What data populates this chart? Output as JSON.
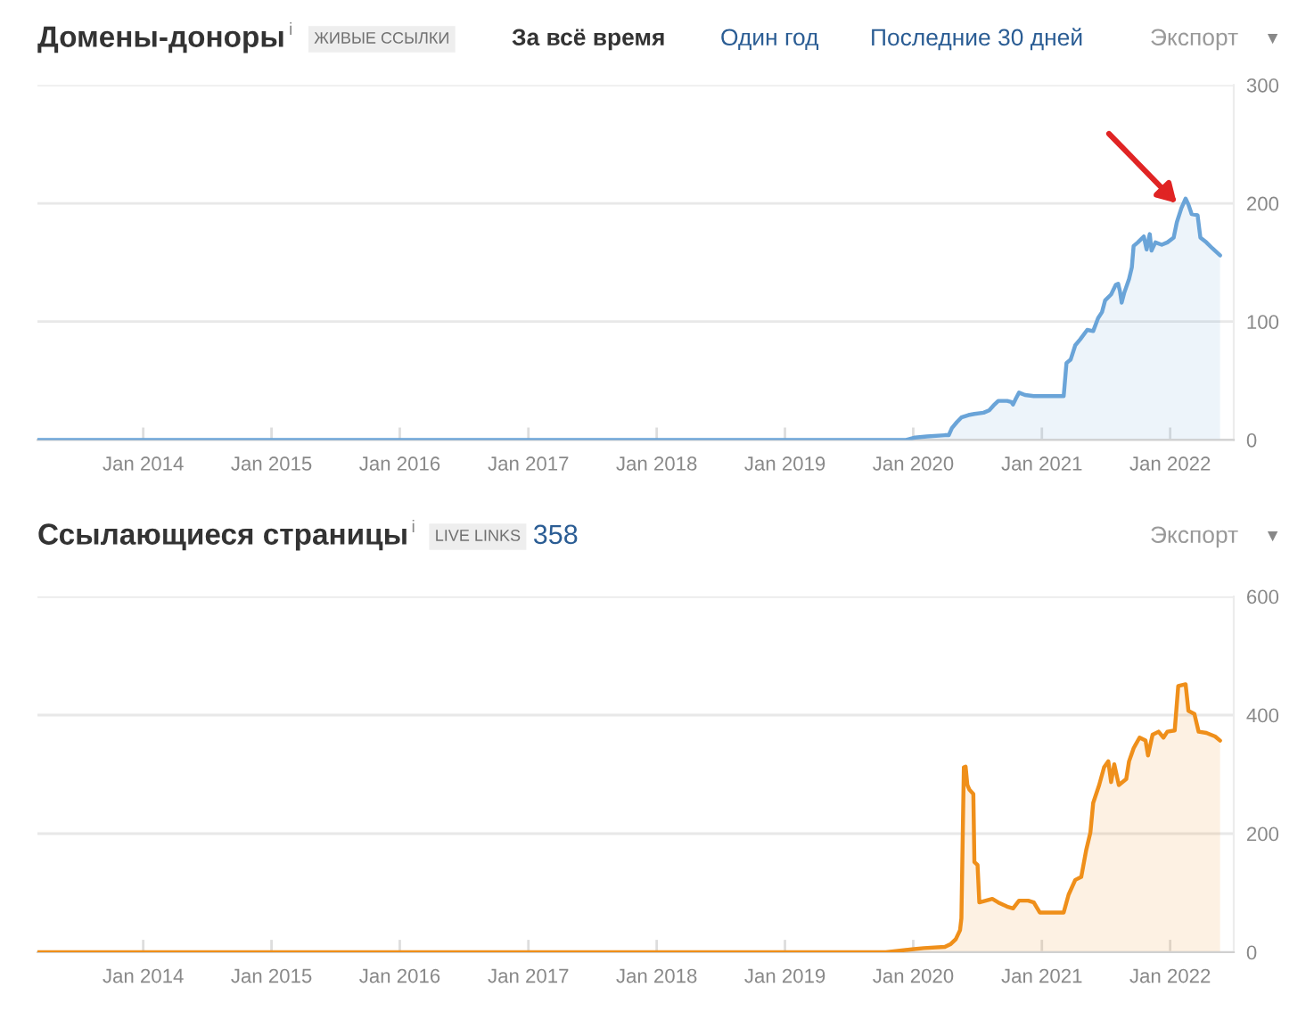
{
  "chart_data": [
    {
      "type": "area",
      "title": "Домены-доноры",
      "annotations": [
        "i",
        "ЖИВЫЕ ССЫЛКИ",
        "За всё время",
        "Один год",
        "Последние 30 дней",
        "Экспорт",
        "▼"
      ],
      "x": [
        "2013-03-06",
        "2019-12-11",
        "2020-01-06",
        "2020-02-09",
        "2020-03-31",
        "2020-04-11",
        "2020-04-20",
        "2020-05-04",
        "2020-05-17",
        "2020-06-06",
        "2020-06-23",
        "2020-07-19",
        "2020-08-04",
        "2020-08-16",
        "2020-08-30",
        "2020-09-24",
        "2020-10-06",
        "2020-10-11",
        "2020-10-19",
        "2020-10-28",
        "2020-11-14",
        "2020-12-09",
        "2021-03-04",
        "2021-03-12",
        "2021-03-24",
        "2021-04-06",
        "2021-04-20",
        "2021-05-10",
        "2021-05-27",
        "2021-06-10",
        "2021-06-21",
        "2021-06-30",
        "2021-07-17",
        "2021-07-30",
        "2021-08-06",
        "2021-08-11",
        "2021-08-16",
        "2021-08-23",
        "2021-09-06",
        "2021-09-14",
        "2021-09-19",
        "2021-10-01",
        "2021-10-18",
        "2021-10-26",
        "2021-11-04",
        "2021-11-09",
        "2021-11-20",
        "2021-12-08",
        "2021-12-24",
        "2022-01-11",
        "2022-01-20",
        "2022-02-02",
        "2022-02-14",
        "2022-02-22",
        "2022-03-03",
        "2022-03-20",
        "2022-03-28",
        "2022-04-14",
        "2022-05-01",
        "2022-05-23"
      ],
      "series": [
        {
          "color": "#6aa4d8",
          "values": [
            0,
            0,
            2,
            3,
            4,
            4,
            10,
            15,
            19,
            21,
            22,
            23,
            25,
            29,
            33,
            33,
            32,
            30,
            35,
            40,
            38,
            37,
            37,
            65,
            68,
            80,
            85,
            93,
            92,
            103,
            108,
            118,
            123,
            131,
            132,
            126,
            116,
            124,
            136,
            146,
            164,
            167,
            172,
            161,
            174,
            160,
            167,
            165,
            167,
            171,
            184,
            196,
            204,
            199,
            191,
            190,
            171,
            167,
            162,
            156
          ]
        }
      ],
      "xlim": [
        "2013-03-06",
        "2022-07-01"
      ],
      "xticks": [
        {
          "value": "2014-01-01",
          "label": "Jan 2014"
        },
        {
          "value": "2015-01-01",
          "label": "Jan 2015"
        },
        {
          "value": "2016-01-01",
          "label": "Jan 2016"
        },
        {
          "value": "2017-01-01",
          "label": "Jan 2017"
        },
        {
          "value": "2018-01-01",
          "label": "Jan 2018"
        },
        {
          "value": "2019-01-01",
          "label": "Jan 2019"
        },
        {
          "value": "2020-01-01",
          "label": "Jan 2020"
        },
        {
          "value": "2021-01-01",
          "label": "Jan 2021"
        },
        {
          "value": "2022-01-01",
          "label": "Jan 2022"
        }
      ],
      "ylim": [
        0,
        300
      ],
      "yticks": [
        0,
        100,
        200,
        300
      ],
      "grid": "y"
    },
    {
      "type": "area",
      "title": "Ссылающиеся страницы",
      "annotations": [
        "i",
        "LIVE LINKS",
        "358",
        "Экспорт",
        "▼"
      ],
      "x": [
        "2013-03-06",
        "2019-10-15",
        "2019-12-28",
        "2020-01-31",
        "2020-03-31",
        "2020-04-17",
        "2020-05-01",
        "2020-05-13",
        "2020-05-17",
        "2020-05-24",
        "2020-05-29",
        "2020-06-03",
        "2020-06-09",
        "2020-06-20",
        "2020-06-23",
        "2020-07-02",
        "2020-07-07",
        "2020-08-13",
        "2020-08-30",
        "2020-09-24",
        "2020-10-11",
        "2020-10-28",
        "2020-11-23",
        "2020-12-09",
        "2020-12-26",
        "2021-03-04",
        "2021-03-18",
        "2021-04-06",
        "2021-04-23",
        "2021-05-07",
        "2021-05-19",
        "2021-05-27",
        "2021-06-13",
        "2021-06-27",
        "2021-07-09",
        "2021-07-17",
        "2021-07-26",
        "2021-08-08",
        "2021-08-29",
        "2021-09-06",
        "2021-09-19",
        "2021-10-06",
        "2021-10-23",
        "2021-10-30",
        "2021-11-12",
        "2021-11-29",
        "2021-12-13",
        "2021-12-24",
        "2022-01-14",
        "2022-01-24",
        "2022-02-14",
        "2022-02-22",
        "2022-03-11",
        "2022-03-23",
        "2022-04-14",
        "2022-05-09",
        "2022-05-23"
      ],
      "series": [
        {
          "color": "#ef8f1a",
          "values": [
            0,
            0,
            5,
            7,
            9,
            14,
            22,
            37,
            57,
            312,
            313,
            282,
            274,
            267,
            152,
            147,
            84,
            90,
            84,
            77,
            74,
            87,
            87,
            84,
            67,
            67,
            97,
            122,
            127,
            172,
            202,
            252,
            282,
            312,
            322,
            287,
            317,
            282,
            292,
            322,
            344,
            362,
            357,
            332,
            367,
            372,
            362,
            372,
            374,
            449,
            452,
            407,
            402,
            372,
            370,
            364,
            357
          ]
        }
      ],
      "xlim": [
        "2013-03-06",
        "2022-07-01"
      ],
      "xticks": [
        {
          "value": "2014-01-01",
          "label": "Jan 2014"
        },
        {
          "value": "2015-01-01",
          "label": "Jan 2015"
        },
        {
          "value": "2016-01-01",
          "label": "Jan 2016"
        },
        {
          "value": "2017-01-01",
          "label": "Jan 2017"
        },
        {
          "value": "2018-01-01",
          "label": "Jan 2018"
        },
        {
          "value": "2019-01-01",
          "label": "Jan 2019"
        },
        {
          "value": "2020-01-01",
          "label": "Jan 2020"
        },
        {
          "value": "2021-01-01",
          "label": "Jan 2021"
        },
        {
          "value": "2022-01-01",
          "label": "Jan 2022"
        }
      ],
      "ylim": [
        0,
        600
      ],
      "yticks": [
        0,
        200,
        400,
        600
      ],
      "grid": "y"
    }
  ]
}
